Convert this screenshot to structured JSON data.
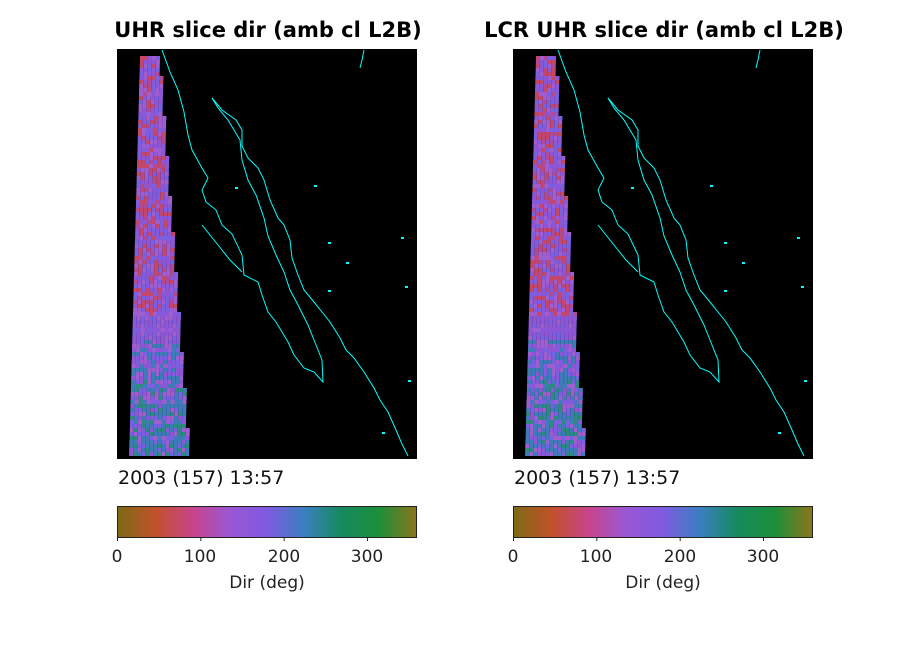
{
  "figure": {
    "panels": [
      {
        "title": "UHR slice dir (amb cl L2B)",
        "timestamp": "2003 (157) 13:57"
      },
      {
        "title": "LCR UHR slice dir (amb cl L2B)",
        "timestamp": "2003 (157) 13:57"
      }
    ],
    "colorbar": {
      "label": "Dir (deg)",
      "tick_labels": [
        "0",
        "100",
        "200",
        "300"
      ],
      "colormap_stops": [
        "#7d6a14",
        "#c2512a",
        "#c8448a",
        "#9a57d4",
        "#7f5ae0",
        "#3a7fc0",
        "#168a5e",
        "#1c8f3a",
        "#8a761c"
      ]
    },
    "colors": {
      "background": "#000000",
      "coastline": "#00ffff"
    }
  },
  "chart_data": [
    {
      "type": "heatmap",
      "title": "UHR slice dir (amb cl L2B)",
      "annotation": "2003 (157) 13:57",
      "colorbar": {
        "label": "Dir (deg)",
        "range": [
          0,
          360
        ],
        "ticks": [
          0,
          100,
          200,
          300
        ]
      },
      "description_of_field": "narrow swath of wind direction values, mostly 120-200 deg with reddish 40-90 deg speckles toward the top and bluish/green 200-260 deg near the bottom"
    },
    {
      "type": "heatmap",
      "title": "LCR UHR slice dir (amb cl L2B)",
      "annotation": "2003 (157) 13:57",
      "colorbar": {
        "label": "Dir (deg)",
        "range": [
          0,
          360
        ],
        "ticks": [
          0,
          100,
          200,
          300
        ]
      }
    }
  ]
}
